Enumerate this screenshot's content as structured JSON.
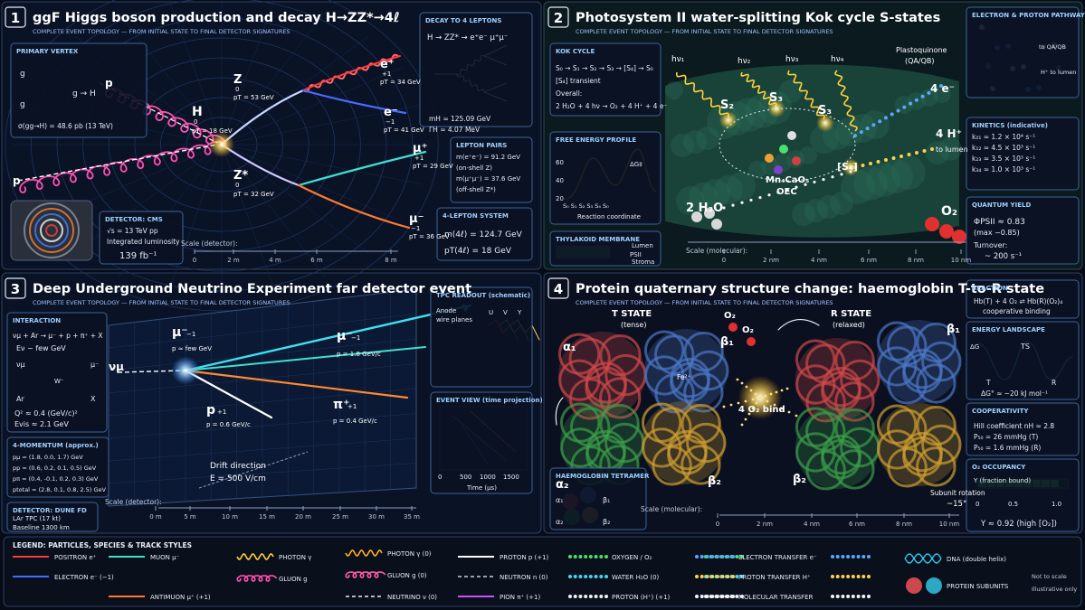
{
  "panels": [
    {
      "number": "1",
      "title": "ggF Higgs boson production and decay  H→ZZ*→4ℓ",
      "subtitle": "COMPLETE EVENT TOPOLOGY — FROM INITIAL STATE TO FINAL DETECTOR SIGNATURES",
      "boxes": [
        {
          "title": "PRIMARY VERTEX",
          "lines": [
            "g",
            "g",
            "g → H",
            "σ(gg→H) = 48.6 pb (13 TeV)"
          ]
        },
        {
          "title": "DECAY TO 4 LEPTONS",
          "lines": [
            "H → ZZ* → e⁺e⁻ μ⁺μ⁻",
            "mH ≈ 125.09 GeV",
            "ΓH ≈ 4.07 MeV"
          ]
        },
        {
          "title": "LEPTON PAIRS",
          "lines": [
            "m(e⁺e⁻) = 91.2 GeV",
            "(on-shell Z)",
            "m(μ⁺μ⁻) = 37.6 GeV",
            "(off-shell Z*)"
          ]
        },
        {
          "title": "4-LEPTON SYSTEM",
          "lines": [
            "m(4ℓ) = 124.7 GeV",
            "pT(4ℓ) = 18 GeV"
          ]
        },
        {
          "title": "DETECTOR: CMS",
          "lines": [
            "√s = 13 TeV   pp",
            "Integrated luminosity",
            "139 fb⁻¹"
          ]
        }
      ],
      "labels": [
        "H",
        "0",
        "pT = 18 GeV",
        "Z",
        "0",
        "pT = 53 GeV",
        "Z*",
        "0",
        "pT = 32 GeV",
        "e⁺",
        "+1",
        "pT = 34 GeV",
        "e⁻",
        "−1",
        "pT = 41 GeV",
        "μ⁺",
        "+1",
        "pT = 29 GeV",
        "μ⁻",
        "−1",
        "pT = 36 GeV",
        "p",
        "p"
      ],
      "scale": {
        "label": "Scale (detector):",
        "ticks": [
          "0",
          "2 m",
          "4 m",
          "6 m",
          "8 m"
        ]
      }
    },
    {
      "number": "2",
      "title": "Photosystem II water-splitting Kok cycle S-states",
      "subtitle": "COMPLETE EVENT TOPOLOGY — FROM INITIAL STATE TO FINAL DETECTOR SIGNATURES",
      "boxes": [
        {
          "title": "KOK CYCLE",
          "lines": [
            "S₀ → S₁ → S₂ → S₃ → [S₄] → S₀",
            "[S₄] transient",
            "Overall:",
            "2 H₂O + 4 hν → O₂ + 4 H⁺ + 4 e⁻"
          ]
        },
        {
          "title": "FREE ENERGY PROFILE",
          "lines": [
            "60",
            "40",
            "20",
            "ΔG‡",
            "S₀  S₁  S₂  S₃  S₄  S₀",
            "Reaction coordinate"
          ]
        },
        {
          "title": "THYLAKOID MEMBRANE",
          "lines": [
            "Lumen",
            "PSII",
            "Stroma"
          ]
        },
        {
          "title": "ELECTRON & PROTON PATHWAYS",
          "lines": [
            "to QA/QB",
            "H⁺ to lumen"
          ]
        },
        {
          "title": "KINETICS (indicative)",
          "lines": [
            "k₀₁ ≈ 1.2 × 10⁴ s⁻¹",
            "k₁₂ ≈ 4.5 × 10³ s⁻¹",
            "k₂₃ ≈ 3.5 × 10³ s⁻¹",
            "k₃₄ ≈ 1.0 × 10³ s⁻¹"
          ]
        },
        {
          "title": "QUANTUM YIELD",
          "lines": [
            "ΦPSII ≈ 0.83",
            "(max ~0.85)",
            "Turnover:",
            "~ 200 s⁻¹"
          ]
        }
      ],
      "labels": [
        "hν₁",
        "hν₂",
        "hν₃",
        "hν₄",
        "S₂",
        "S₃",
        "S₃",
        "[S₄]",
        "Mn₄CaO₅",
        "OEC",
        "2 H₂O",
        "O₂",
        "4 H⁺",
        "to lumen",
        "4 e⁻",
        "Plastoquinone",
        "(QA/QB)"
      ],
      "scale": {
        "label": "Scale (molecular):",
        "ticks": [
          "0",
          "2 nm",
          "4 nm",
          "6 nm",
          "8 nm",
          "10 nm"
        ]
      }
    },
    {
      "number": "3",
      "title": "Deep Underground Neutrino Experiment far detector event",
      "subtitle": "COMPLETE EVENT TOPOLOGY — FROM INITIAL STATE TO FINAL DETECTOR SIGNATURES",
      "boxes": [
        {
          "title": "INTERACTION",
          "lines": [
            "νμ + Ar → μ⁻ + p + π⁺ + X",
            "Eν ~ few GeV",
            "νμ",
            "μ⁻",
            "W⁻",
            "Ar",
            "X",
            "Q² ≈ 0.4 (GeV/c)²",
            "Evis ≈ 2.1 GeV"
          ]
        },
        {
          "title": "4-MOMENTUM  (approx.)",
          "lines": [
            "pμ = (1.8, 0.0, 1.7) GeV",
            "pp = (0.6, 0.2, 0.1, 0.5) GeV",
            "pπ = (0.4, -0.1, 0.2, 0.3) GeV",
            "ptotal = (2.8, 0.1, 0.8, 2.5) GeV"
          ]
        },
        {
          "title": "DETECTOR: DUNE FD",
          "lines": [
            "LAr TPC   (17 kt)",
            "Baseline  1300 km"
          ]
        },
        {
          "title": "TPC READOUT (schematic)",
          "lines": [
            "Anode",
            "wire planes",
            "U",
            "V",
            "Y"
          ]
        },
        {
          "title": "EVENT VIEW (time projection)",
          "lines": [
            "0",
            "500",
            "1000",
            "1500",
            "Time (μs)"
          ]
        }
      ],
      "labels": [
        "νμ",
        "μ⁻",
        "−1",
        "p ≈ few GeV",
        "μ⁻",
        "−1",
        "p = 1.8 GeV/c",
        "p",
        "+1",
        "p = 0.6 GeV/c",
        "π⁺",
        "+1",
        "p = 0.4 GeV/c",
        "Drift direction",
        "E = 500 V/cm"
      ],
      "scale": {
        "label": "Scale (detector):",
        "ticks": [
          "0 m",
          "5 m",
          "10 m",
          "15 m",
          "20 m",
          "25 m",
          "30 m",
          "35 m"
        ]
      }
    },
    {
      "number": "4",
      "title": "Protein quaternary structure change: haemoglobin T-to-R state",
      "subtitle": "COMPLETE EVENT TOPOLOGY — FROM INITIAL STATE TO FINAL DETECTOR SIGNATURES",
      "boxes": [
        {
          "title": "REACTION",
          "lines": [
            "Hb(T) + 4 O₂ ⇌ Hb(R)(O₂)₄",
            "cooperative binding"
          ]
        },
        {
          "title": "ENERGY LANDSCAPE",
          "lines": [
            "ΔG",
            "TS",
            "T",
            "R",
            "ΔG° ≈ −20 kJ mol⁻¹"
          ]
        },
        {
          "title": "COOPERATIVITY",
          "lines": [
            "Hill coefficient  nH ≈ 2.8",
            "P₅₀ = 26 mmHg (T)",
            "P₅₀ = 1.6 mmHg (R)"
          ]
        },
        {
          "title": "O₂ OCCUPANCY",
          "lines": [
            "Y (fraction bound)",
            "0",
            "0.5",
            "1.0",
            "Y ≈ 0.92 (high [O₂])"
          ]
        },
        {
          "title": "HAEMOGLOBIN TETRAMER",
          "lines": [
            "α₁",
            "β₁",
            "α₂",
            "β₂"
          ]
        }
      ],
      "labels": [
        "T STATE",
        "(tense)",
        "R STATE",
        "(relaxed)",
        "α₁",
        "β₁",
        "α₂",
        "β₂",
        "β₁",
        "β₂",
        "O₂",
        "O₂",
        "4 O₂ bind",
        "Fe²⁺",
        "Subunit rotation",
        "~15°"
      ],
      "scale": {
        "label": "Scale (molecular):",
        "ticks": [
          "0",
          "2 nm",
          "4 nm",
          "6 nm",
          "8 nm",
          "10 nm"
        ]
      }
    }
  ],
  "legend": {
    "title": "LEGEND: PARTICLES, SPECIES & TRACK STYLES",
    "items": [
      {
        "label": "POSITRON  e⁺",
        "color": "#ff3b3b",
        "style": "solid"
      },
      {
        "label": "ELECTRON  e⁻  (−1)",
        "color": "#4a6bff",
        "style": "solid"
      },
      {
        "label": "MUON  μ⁻",
        "color": "#3fe0d0",
        "style": "solid"
      },
      {
        "label": "ANTIMUON  μ⁺ (+1)",
        "color": "#ff7a30",
        "style": "solid"
      },
      {
        "label": "PHOTON  γ",
        "color": "#ffd23a",
        "style": "wave"
      },
      {
        "label": "GLUON  g",
        "color": "#ff4fb0",
        "style": "curl"
      },
      {
        "label": "PHOTON  γ  (0)",
        "color": "#ffb020",
        "style": "wave"
      },
      {
        "label": "GLUON  g  (0)",
        "color": "#ff5ca8",
        "style": "curl"
      },
      {
        "label": "NEUTRINO  ν  (0)",
        "color": "#e8eef8",
        "style": "dash"
      },
      {
        "label": "PROTON  p  (+1)",
        "color": "#ffffff",
        "style": "solid"
      },
      {
        "label": "NEUTRON  n  (0)",
        "color": "#c8d0dc",
        "style": "dash"
      },
      {
        "label": "PION  π⁺  (+1)",
        "color": "#d050ff",
        "style": "solid"
      },
      {
        "label": "OXYGEN / O₂",
        "color": "#4be06a",
        "style": "dots"
      },
      {
        "label": "WATER  H₂O  (0)",
        "color": "#3fd8f0",
        "style": "dots"
      },
      {
        "label": "PROTON (H⁺)  (+1)",
        "color": "#f0f0f0",
        "style": "dots"
      },
      {
        "label": "ELECTRON TRANSFER  e⁻",
        "color": "#58a8ff",
        "style": "dots"
      },
      {
        "label": "PROTON TRANSFER  H⁺",
        "color": "#ffd050",
        "style": "dots"
      },
      {
        "label": "MOLECULAR TRANSFER",
        "color": "#f4f4f4",
        "style": "dots"
      },
      {
        "label": "DNA (double helix)",
        "color": "#36c8e8",
        "style": "helix"
      },
      {
        "label": "PROTEIN SUBUNITS",
        "color": "#e05050",
        "style": "blobs"
      }
    ],
    "notes": [
      "Not to scale",
      "Illustrative only"
    ]
  }
}
